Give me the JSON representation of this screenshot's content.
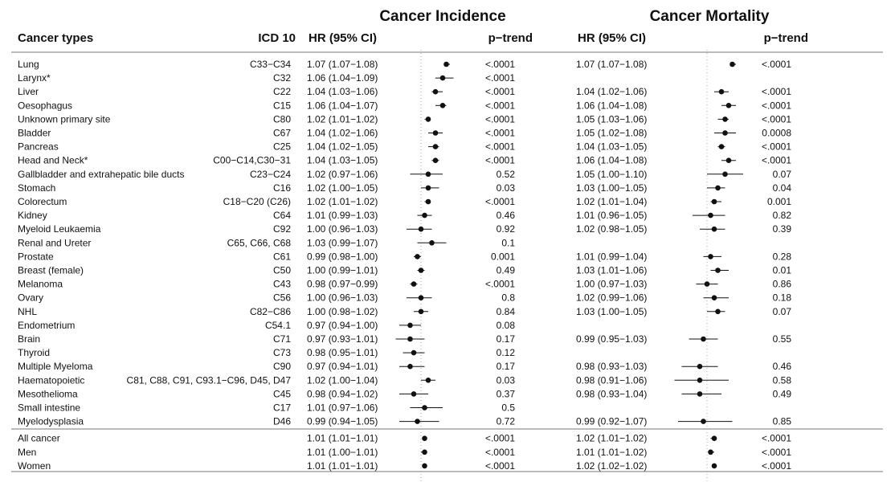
{
  "chart_data": {
    "type": "forest",
    "panels": [
      {
        "title": "Cancer Incidence",
        "hr_header": "HR (95% CI)",
        "p_header": "p−trend"
      },
      {
        "title": "Cancer Mortality",
        "hr_header": "HR (95% CI)",
        "p_header": "p−trend"
      }
    ],
    "headers": {
      "cancer_type": "Cancer types",
      "icd": "ICD 10"
    },
    "reference_line": 1.0,
    "rows": [
      {
        "name": "Lung",
        "icd": "C33−C34",
        "inc": {
          "text": "1.07 (1.07−1.08)",
          "hr": 1.07,
          "lo": 1.07,
          "hi": 1.08,
          "p": "<.0001"
        },
        "mor": {
          "text": "1.07 (1.07−1.08)",
          "hr": 1.07,
          "lo": 1.07,
          "hi": 1.08,
          "p": "<.0001"
        }
      },
      {
        "name": "Larynx*",
        "icd": "C32",
        "inc": {
          "text": "1.06 (1.04−1.09)",
          "hr": 1.06,
          "lo": 1.04,
          "hi": 1.09,
          "p": "<.0001"
        },
        "mor": null
      },
      {
        "name": "Liver",
        "icd": "C22",
        "inc": {
          "text": "1.04 (1.03−1.06)",
          "hr": 1.04,
          "lo": 1.03,
          "hi": 1.06,
          "p": "<.0001"
        },
        "mor": {
          "text": "1.04 (1.02−1.06)",
          "hr": 1.04,
          "lo": 1.02,
          "hi": 1.06,
          "p": "<.0001"
        }
      },
      {
        "name": "Oesophagus",
        "icd": "C15",
        "inc": {
          "text": "1.06 (1.04−1.07)",
          "hr": 1.06,
          "lo": 1.04,
          "hi": 1.07,
          "p": "<.0001"
        },
        "mor": {
          "text": "1.06 (1.04−1.08)",
          "hr": 1.06,
          "lo": 1.04,
          "hi": 1.08,
          "p": "<.0001"
        }
      },
      {
        "name": "Unknown primary site",
        "icd": "C80",
        "inc": {
          "text": "1.02 (1.01−1.02)",
          "hr": 1.02,
          "lo": 1.01,
          "hi": 1.02,
          "p": "<.0001"
        },
        "mor": {
          "text": "1.05 (1.03−1.06)",
          "hr": 1.05,
          "lo": 1.03,
          "hi": 1.06,
          "p": "<.0001"
        }
      },
      {
        "name": "Bladder",
        "icd": "C67",
        "inc": {
          "text": "1.04 (1.02−1.06)",
          "hr": 1.04,
          "lo": 1.02,
          "hi": 1.06,
          "p": "<.0001"
        },
        "mor": {
          "text": "1.05 (1.02−1.08)",
          "hr": 1.05,
          "lo": 1.02,
          "hi": 1.08,
          "p": "0.0008"
        }
      },
      {
        "name": "Pancreas",
        "icd": "C25",
        "inc": {
          "text": "1.04 (1.02−1.05)",
          "hr": 1.04,
          "lo": 1.02,
          "hi": 1.05,
          "p": "<.0001"
        },
        "mor": {
          "text": "1.04 (1.03−1.05)",
          "hr": 1.04,
          "lo": 1.03,
          "hi": 1.05,
          "p": "<.0001"
        }
      },
      {
        "name": "Head and Neck*",
        "icd": "C00−C14,C30−31",
        "inc": {
          "text": "1.04 (1.03−1.05)",
          "hr": 1.04,
          "lo": 1.03,
          "hi": 1.05,
          "p": "<.0001"
        },
        "mor": {
          "text": "1.06 (1.04−1.08)",
          "hr": 1.06,
          "lo": 1.04,
          "hi": 1.08,
          "p": "<.0001"
        }
      },
      {
        "name": "Gallbladder and extrahepatic bile ducts",
        "icd": "C23−C24",
        "inc": {
          "text": "1.02 (0.97−1.06)",
          "hr": 1.02,
          "lo": 0.97,
          "hi": 1.06,
          "p": "0.52"
        },
        "mor": {
          "text": "1.05 (1.00−1.10)",
          "hr": 1.05,
          "lo": 1.0,
          "hi": 1.1,
          "p": "0.07"
        }
      },
      {
        "name": "Stomach",
        "icd": "C16",
        "inc": {
          "text": "1.02 (1.00−1.05)",
          "hr": 1.02,
          "lo": 1.0,
          "hi": 1.05,
          "p": "0.03"
        },
        "mor": {
          "text": "1.03 (1.00−1.05)",
          "hr": 1.03,
          "lo": 1.0,
          "hi": 1.05,
          "p": "0.04"
        }
      },
      {
        "name": "Colorectum",
        "icd": "C18−C20 (C26)",
        "inc": {
          "text": "1.02 (1.01−1.02)",
          "hr": 1.02,
          "lo": 1.01,
          "hi": 1.02,
          "p": "<.0001"
        },
        "mor": {
          "text": "1.02 (1.01−1.04)",
          "hr": 1.02,
          "lo": 1.01,
          "hi": 1.04,
          "p": "0.001"
        }
      },
      {
        "name": "Kidney",
        "icd": "C64",
        "inc": {
          "text": "1.01 (0.99−1.03)",
          "hr": 1.01,
          "lo": 0.99,
          "hi": 1.03,
          "p": "0.46"
        },
        "mor": {
          "text": "1.01 (0.96−1.05)",
          "hr": 1.01,
          "lo": 0.96,
          "hi": 1.05,
          "p": "0.82"
        }
      },
      {
        "name": "Myeloid Leukaemia",
        "icd": "C92",
        "inc": {
          "text": "1.00 (0.96−1.03)",
          "hr": 1.0,
          "lo": 0.96,
          "hi": 1.03,
          "p": "0.92"
        },
        "mor": {
          "text": "1.02 (0.98−1.05)",
          "hr": 1.02,
          "lo": 0.98,
          "hi": 1.05,
          "p": "0.39"
        }
      },
      {
        "name": "Renal and Ureter",
        "icd": "C65, C66, C68",
        "inc": {
          "text": "1.03 (0.99−1.07)",
          "hr": 1.03,
          "lo": 0.99,
          "hi": 1.07,
          "p": "0.1"
        },
        "mor": null
      },
      {
        "name": "Prostate",
        "icd": "C61",
        "inc": {
          "text": "0.99 (0.98−1.00)",
          "hr": 0.99,
          "lo": 0.98,
          "hi": 1.0,
          "p": "0.001"
        },
        "mor": {
          "text": "1.01 (0.99−1.04)",
          "hr": 1.01,
          "lo": 0.99,
          "hi": 1.04,
          "p": "0.28"
        }
      },
      {
        "name": "Breast (female)",
        "icd": "C50",
        "inc": {
          "text": "1.00 (0.99−1.01)",
          "hr": 1.0,
          "lo": 0.99,
          "hi": 1.01,
          "p": "0.49"
        },
        "mor": {
          "text": "1.03 (1.01−1.06)",
          "hr": 1.03,
          "lo": 1.01,
          "hi": 1.06,
          "p": "0.01"
        }
      },
      {
        "name": "Melanoma",
        "icd": "C43",
        "inc": {
          "text": "0.98 (0.97−0.99)",
          "hr": 0.98,
          "lo": 0.97,
          "hi": 0.99,
          "p": "<.0001"
        },
        "mor": {
          "text": "1.00 (0.97−1.03)",
          "hr": 1.0,
          "lo": 0.97,
          "hi": 1.03,
          "p": "0.86"
        }
      },
      {
        "name": "Ovary",
        "icd": "C56",
        "inc": {
          "text": "1.00 (0.96−1.03)",
          "hr": 1.0,
          "lo": 0.96,
          "hi": 1.03,
          "p": "0.8"
        },
        "mor": {
          "text": "1.02 (0.99−1.06)",
          "hr": 1.02,
          "lo": 0.99,
          "hi": 1.06,
          "p": "0.18"
        }
      },
      {
        "name": "NHL",
        "icd": "C82−C86",
        "inc": {
          "text": "1.00 (0.98−1.02)",
          "hr": 1.0,
          "lo": 0.98,
          "hi": 1.02,
          "p": "0.84"
        },
        "mor": {
          "text": "1.03 (1.00−1.05)",
          "hr": 1.03,
          "lo": 1.0,
          "hi": 1.05,
          "p": "0.07"
        }
      },
      {
        "name": "Endometrium",
        "icd": "C54.1",
        "inc": {
          "text": "0.97 (0.94−1.00)",
          "hr": 0.97,
          "lo": 0.94,
          "hi": 1.0,
          "p": "0.08"
        },
        "mor": null
      },
      {
        "name": "Brain",
        "icd": "C71",
        "inc": {
          "text": "0.97 (0.93−1.01)",
          "hr": 0.97,
          "lo": 0.93,
          "hi": 1.01,
          "p": "0.17"
        },
        "mor": {
          "text": "0.99 (0.95−1.03)",
          "hr": 0.99,
          "lo": 0.95,
          "hi": 1.03,
          "p": "0.55"
        }
      },
      {
        "name": "Thyroid",
        "icd": "C73",
        "inc": {
          "text": "0.98 (0.95−1.01)",
          "hr": 0.98,
          "lo": 0.95,
          "hi": 1.01,
          "p": "0.12"
        },
        "mor": null
      },
      {
        "name": "Multiple Myeloma",
        "icd": "C90",
        "inc": {
          "text": "0.97 (0.94−1.01)",
          "hr": 0.97,
          "lo": 0.94,
          "hi": 1.01,
          "p": "0.17"
        },
        "mor": {
          "text": "0.98 (0.93−1.03)",
          "hr": 0.98,
          "lo": 0.93,
          "hi": 1.03,
          "p": "0.46"
        }
      },
      {
        "name": "Haematopoietic",
        "icd": "C81, C88, C91, C93.1−C96, D45, D47",
        "inc": {
          "text": "1.02 (1.00−1.04)",
          "hr": 1.02,
          "lo": 1.0,
          "hi": 1.04,
          "p": "0.03"
        },
        "mor": {
          "text": "0.98 (0.91−1.06)",
          "hr": 0.98,
          "lo": 0.91,
          "hi": 1.06,
          "p": "0.58"
        }
      },
      {
        "name": "Mesothelioma",
        "icd": "C45",
        "inc": {
          "text": "0.98 (0.94−1.02)",
          "hr": 0.98,
          "lo": 0.94,
          "hi": 1.02,
          "p": "0.37"
        },
        "mor": {
          "text": "0.98 (0.93−1.04)",
          "hr": 0.98,
          "lo": 0.93,
          "hi": 1.04,
          "p": "0.49"
        }
      },
      {
        "name": "Small intestine",
        "icd": "C17",
        "inc": {
          "text": "1.01 (0.97−1.06)",
          "hr": 1.01,
          "lo": 0.97,
          "hi": 1.06,
          "p": "0.5"
        },
        "mor": null
      },
      {
        "name": "Myelodysplasia",
        "icd": "D46",
        "inc": {
          "text": "0.99 (0.94−1.05)",
          "hr": 0.99,
          "lo": 0.94,
          "hi": 1.05,
          "p": "0.72"
        },
        "mor": {
          "text": "0.99 (0.92−1.07)",
          "hr": 0.99,
          "lo": 0.92,
          "hi": 1.07,
          "p": "0.85"
        }
      },
      {
        "name": "All cancer",
        "icd": "",
        "inc": {
          "text": "1.01 (1.01−1.01)",
          "hr": 1.01,
          "lo": 1.01,
          "hi": 1.01,
          "p": "<.0001"
        },
        "mor": {
          "text": "1.02 (1.01−1.02)",
          "hr": 1.02,
          "lo": 1.01,
          "hi": 1.02,
          "p": "<.0001"
        }
      },
      {
        "name": "Men",
        "icd": "",
        "inc": {
          "text": "1.01 (1.00−1.01)",
          "hr": 1.01,
          "lo": 1.0,
          "hi": 1.01,
          "p": "<.0001"
        },
        "mor": {
          "text": "1.01 (1.01−1.02)",
          "hr": 1.01,
          "lo": 1.01,
          "hi": 1.02,
          "p": "<.0001"
        }
      },
      {
        "name": "Women",
        "icd": "",
        "inc": {
          "text": "1.01 (1.01−1.01)",
          "hr": 1.01,
          "lo": 1.01,
          "hi": 1.01,
          "p": "<.0001"
        },
        "mor": {
          "text": "1.02 (1.02−1.02)",
          "hr": 1.02,
          "lo": 1.02,
          "hi": 1.02,
          "p": "<.0001"
        }
      }
    ]
  }
}
